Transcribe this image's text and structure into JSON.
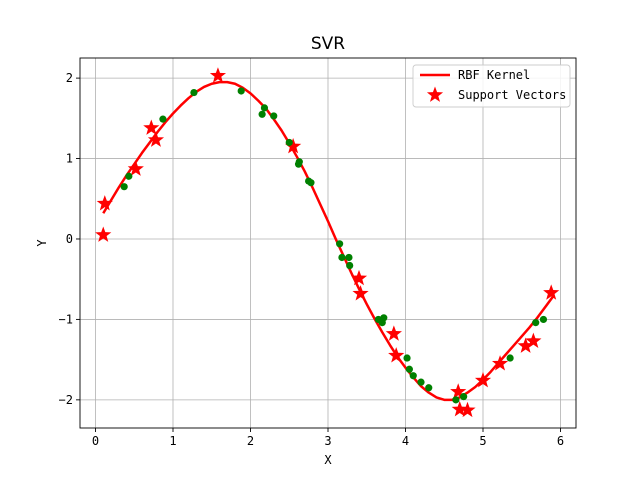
{
  "chart_data": {
    "type": "scatter",
    "title": "SVR",
    "xlabel": "X",
    "ylabel": "Y",
    "xlim": [
      -0.2,
      6.2
    ],
    "ylim": [
      -2.35,
      2.25
    ],
    "xticks": [
      0,
      1,
      2,
      3,
      4,
      5,
      6
    ],
    "yticks": [
      -2,
      -1,
      0,
      1,
      2
    ],
    "grid": true,
    "legend_position": "top-right",
    "colors": {
      "curve": "#ff0000",
      "support": "#ff0000",
      "data": "#008000"
    },
    "series": [
      {
        "name": "RBF Kernel",
        "kind": "line",
        "x": [
          0.1,
          0.2,
          0.3,
          0.4,
          0.5,
          0.6,
          0.7,
          0.8,
          0.9,
          1.0,
          1.1,
          1.2,
          1.3,
          1.4,
          1.5,
          1.6,
          1.7,
          1.8,
          1.9,
          2.0,
          2.1,
          2.2,
          2.3,
          2.4,
          2.5,
          2.6,
          2.7,
          2.8,
          2.9,
          3.0,
          3.1,
          3.2,
          3.3,
          3.4,
          3.5,
          3.6,
          3.7,
          3.8,
          3.9,
          4.0,
          4.1,
          4.2,
          4.3,
          4.4,
          4.5,
          4.6,
          4.7,
          4.8,
          4.9,
          5.0,
          5.1,
          5.2,
          5.3,
          5.4,
          5.5,
          5.6,
          5.7,
          5.8,
          5.9
        ],
        "y": [
          0.32,
          0.48,
          0.64,
          0.79,
          0.93,
          1.07,
          1.2,
          1.33,
          1.45,
          1.56,
          1.66,
          1.75,
          1.83,
          1.89,
          1.93,
          1.95,
          1.95,
          1.93,
          1.88,
          1.81,
          1.72,
          1.62,
          1.49,
          1.35,
          1.19,
          1.02,
          0.84,
          0.64,
          0.43,
          0.22,
          0.0,
          -0.21,
          -0.42,
          -0.62,
          -0.81,
          -0.99,
          -1.16,
          -1.32,
          -1.47,
          -1.6,
          -1.72,
          -1.83,
          -1.91,
          -1.97,
          -2.0,
          -2.0,
          -1.97,
          -1.91,
          -1.84,
          -1.75,
          -1.65,
          -1.54,
          -1.43,
          -1.32,
          -1.21,
          -1.1,
          -0.98,
          -0.85,
          -0.72
        ]
      },
      {
        "name": "Support Vectors",
        "kind": "stars",
        "x": [
          0.1,
          0.12,
          0.52,
          0.72,
          0.78,
          1.58,
          2.55,
          3.4,
          3.42,
          3.85,
          3.88,
          4.68,
          4.7,
          4.8,
          5.0,
          5.22,
          5.55,
          5.65,
          5.88
        ],
        "y": [
          0.05,
          0.44,
          0.87,
          1.38,
          1.23,
          2.03,
          1.15,
          -0.49,
          -0.68,
          -1.18,
          -1.45,
          -1.9,
          -2.12,
          -2.13,
          -1.76,
          -1.55,
          -1.33,
          -1.27,
          -0.67
        ]
      },
      {
        "kind": "points",
        "x": [
          0.37,
          0.43,
          0.87,
          1.27,
          1.88,
          2.15,
          2.18,
          2.3,
          2.5,
          2.62,
          2.63,
          2.75,
          2.78,
          3.15,
          3.18,
          3.27,
          3.28,
          3.65,
          3.7,
          3.72,
          4.02,
          4.05,
          4.1,
          4.2,
          4.3,
          4.65,
          4.75,
          5.35,
          5.68,
          5.78
        ],
        "y": [
          0.65,
          0.78,
          1.49,
          1.82,
          1.84,
          1.55,
          1.63,
          1.53,
          1.2,
          0.93,
          0.96,
          0.72,
          0.7,
          -0.06,
          -0.23,
          -0.23,
          -0.33,
          -1.0,
          -1.04,
          -0.98,
          -1.48,
          -1.62,
          -1.7,
          -1.78,
          -1.85,
          -2.0,
          -1.96,
          -1.48,
          -1.04,
          -1.0
        ]
      }
    ]
  }
}
